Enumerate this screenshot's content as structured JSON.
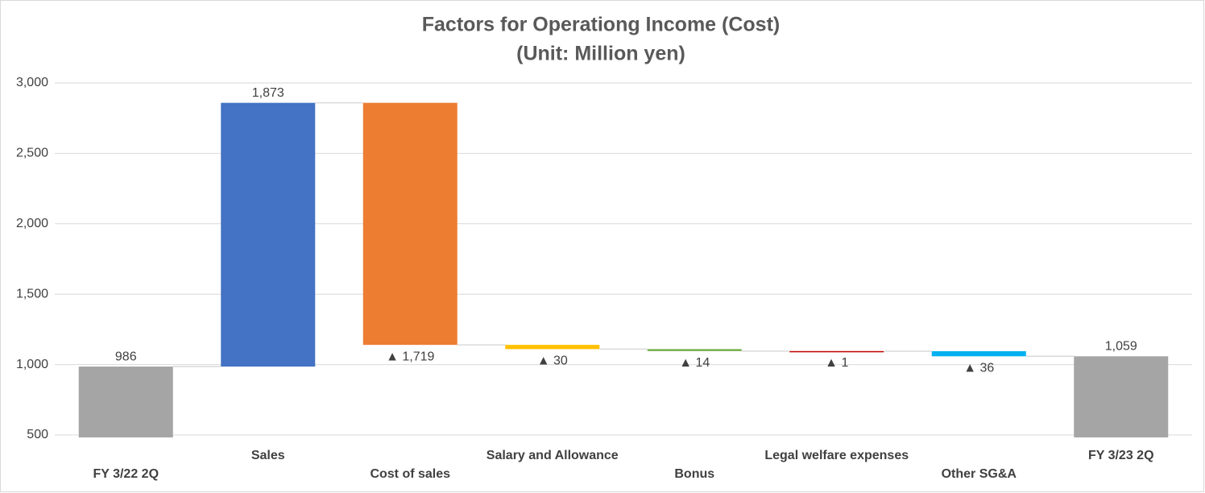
{
  "chart_data": {
    "type": "waterfall",
    "title": "Factors for Operationg Income (Cost)",
    "subtitle": "(Unit: Million yen)",
    "categories": [
      "FY 3/22 2Q",
      "Sales",
      "Cost of sales",
      "Salary and Allowance",
      "Bonus",
      "Legal welfare expenses",
      "Other SG&A",
      "FY 3/23 2Q"
    ],
    "values": [
      986,
      1873,
      -1719,
      -30,
      -14,
      -1,
      -36,
      1059
    ],
    "value_labels": [
      "986",
      "1,873",
      "▲ 1,719",
      "▲ 30",
      "▲ 14",
      "▲ 1",
      "▲ 36",
      "1,059"
    ],
    "totals": [
      true,
      false,
      false,
      false,
      false,
      false,
      false,
      true
    ],
    "colors": [
      "#a5a5a5",
      "#4472c4",
      "#ed7d31",
      "#ffc000",
      "#70ad47",
      "#c00000",
      "#00b0f0",
      "#a5a5a5"
    ],
    "ylim": [
      500,
      3000
    ],
    "yticks": [
      500,
      {
        "value": 1000,
        "label": "1,000"
      },
      {
        "value": 1500,
        "label": "1,500"
      },
      {
        "value": 2000,
        "label": "2,000"
      },
      {
        "value": 2500,
        "label": "2,500"
      },
      {
        "value": 3000,
        "label": "3,000"
      }
    ],
    "grid": true
  }
}
